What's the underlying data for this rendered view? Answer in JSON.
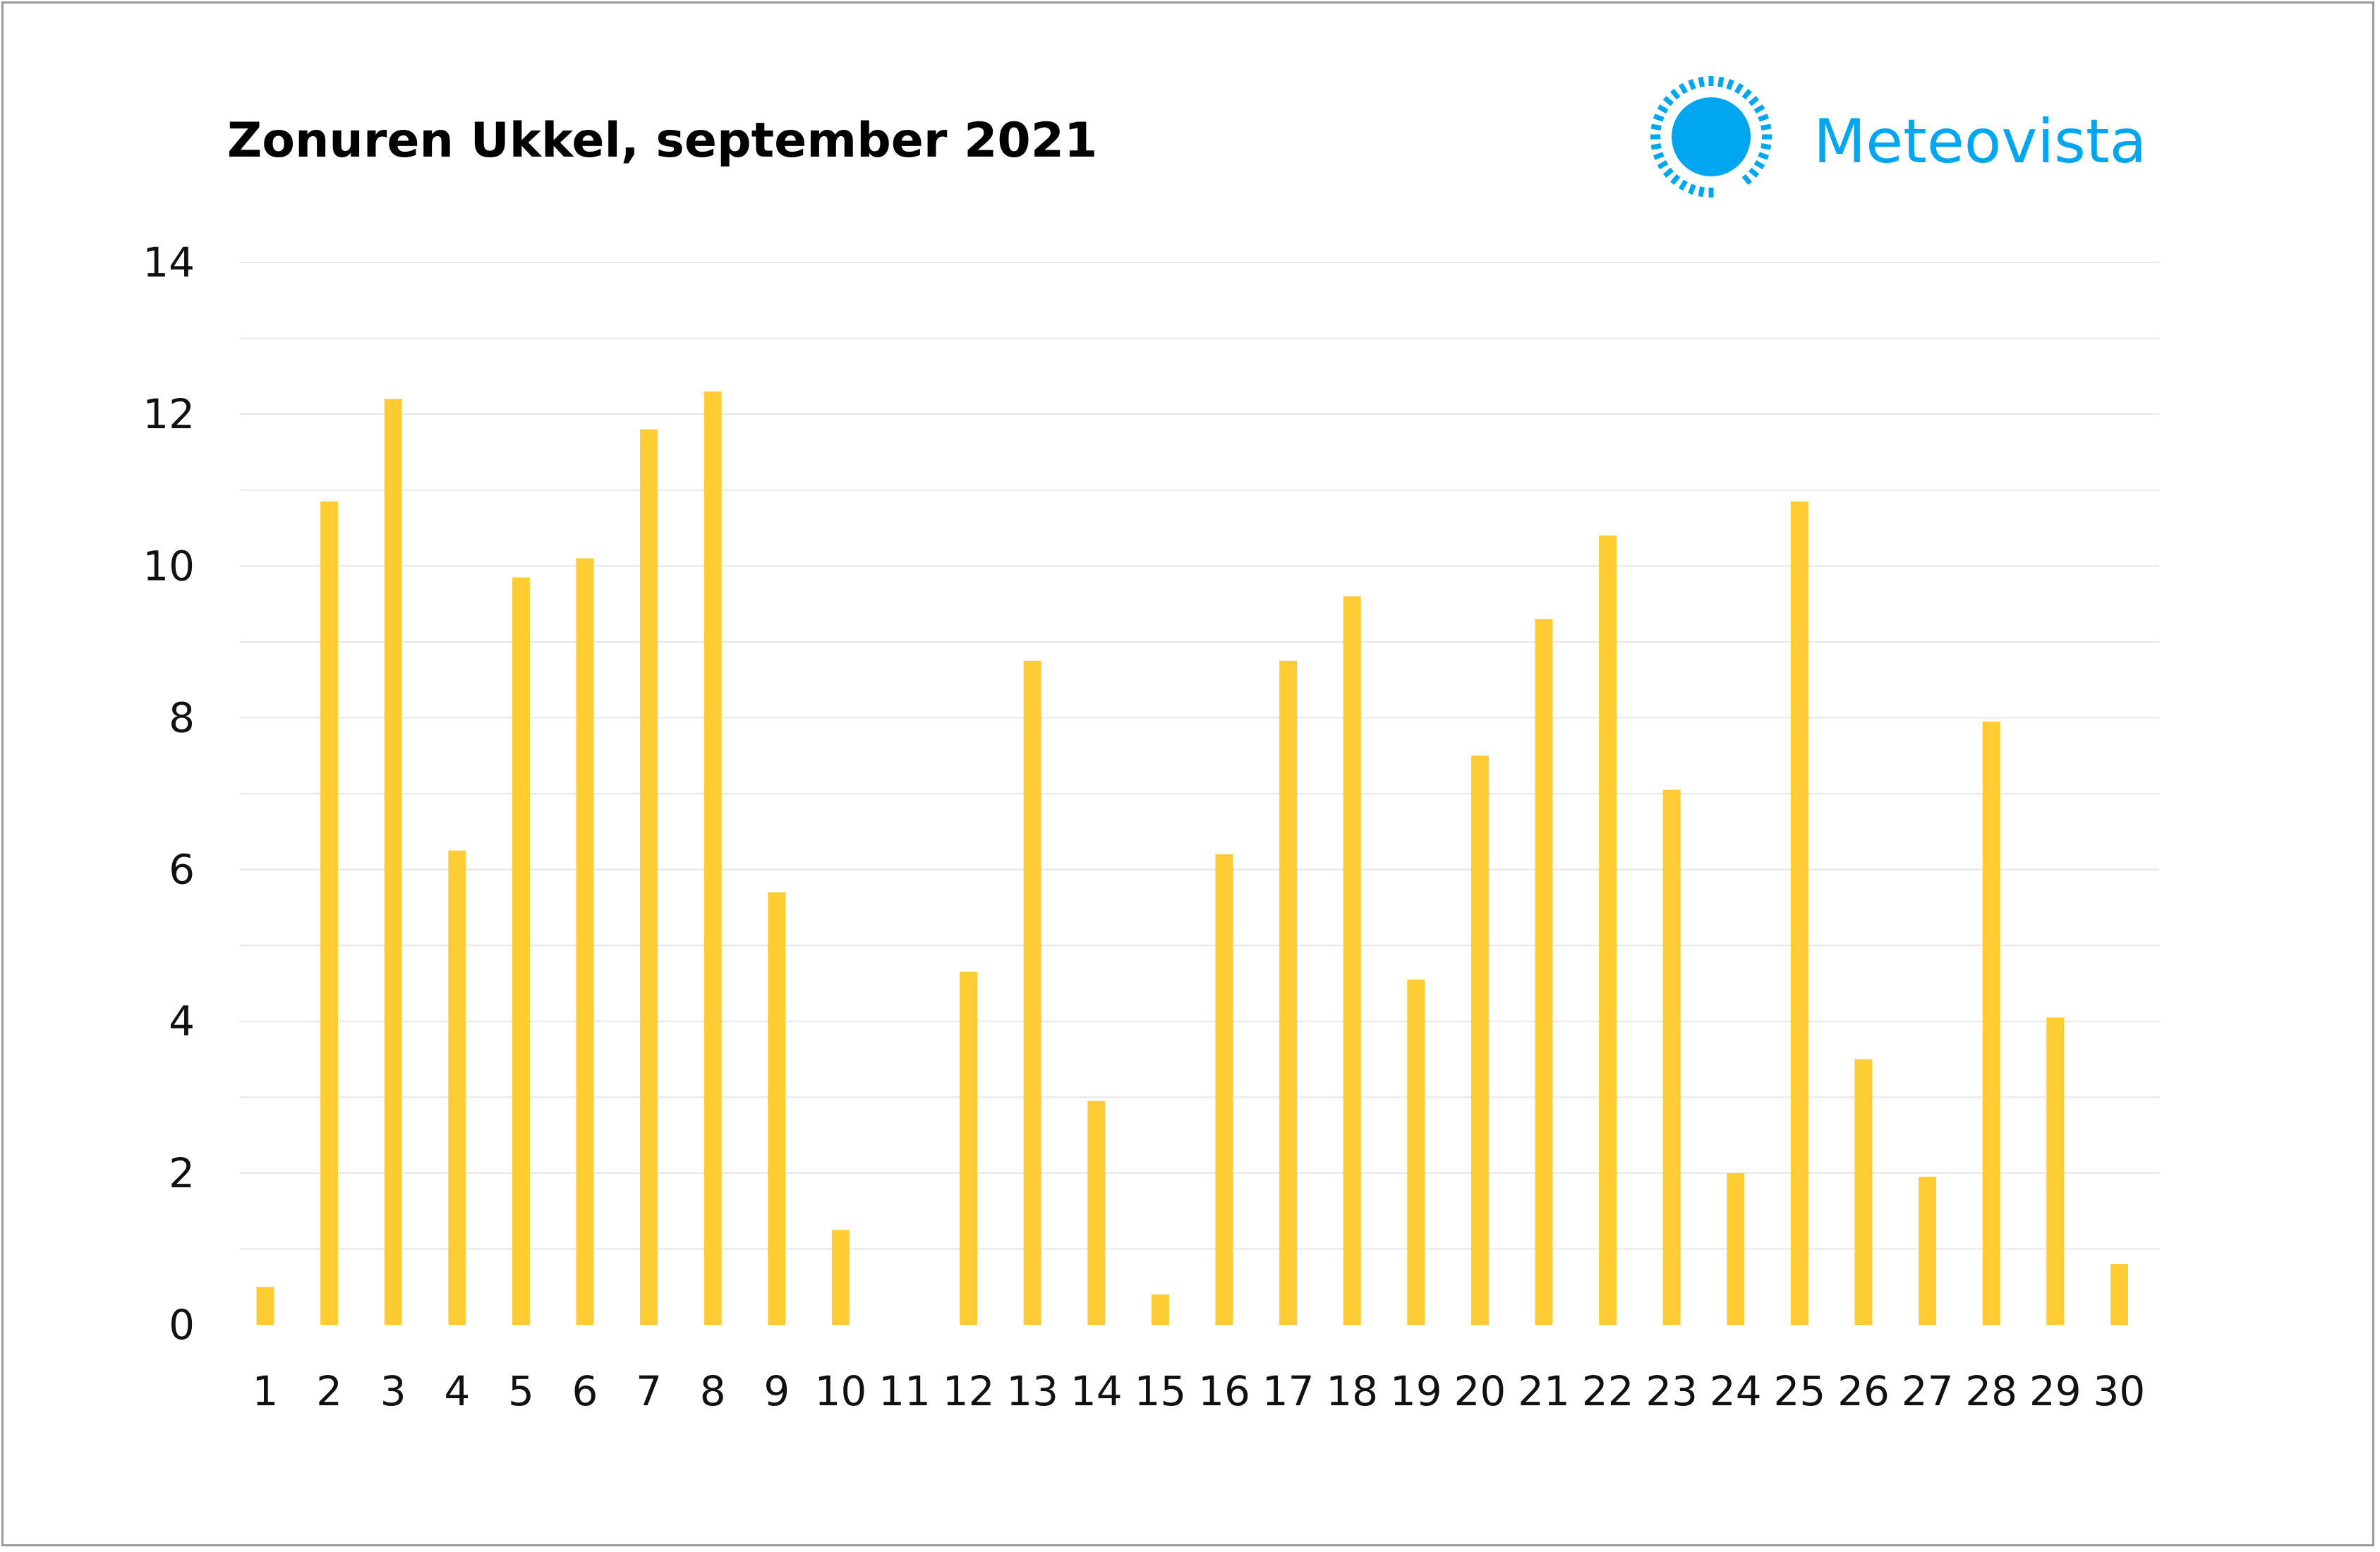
{
  "colors": {
    "bar": "#FFCC33",
    "brand": "#00A6F0",
    "grid": "#E6E6E6"
  },
  "logo": {
    "text": "Meteovista",
    "icon": "sun-icon"
  },
  "chart_data": {
    "type": "bar",
    "title": "Zonuren Ukkel, september 2021",
    "xlabel": "",
    "ylabel": "",
    "ylim": [
      0,
      14
    ],
    "yticks": [
      0,
      2,
      4,
      6,
      8,
      10,
      12,
      14
    ],
    "grid": true,
    "legend": "none",
    "categories": [
      "1",
      "2",
      "3",
      "4",
      "5",
      "6",
      "7",
      "8",
      "9",
      "10",
      "11",
      "12",
      "13",
      "14",
      "15",
      "16",
      "17",
      "18",
      "19",
      "20",
      "21",
      "22",
      "23",
      "24",
      "25",
      "26",
      "27",
      "28",
      "29",
      "30"
    ],
    "values": [
      0.5,
      10.85,
      12.2,
      6.25,
      9.85,
      10.1,
      11.8,
      12.3,
      5.7,
      1.25,
      0,
      4.65,
      8.75,
      2.95,
      0.4,
      6.2,
      8.75,
      9.6,
      4.55,
      7.5,
      9.3,
      10.4,
      7.05,
      2.0,
      10.85,
      3.5,
      1.95,
      7.95,
      4.05,
      0.8
    ]
  }
}
